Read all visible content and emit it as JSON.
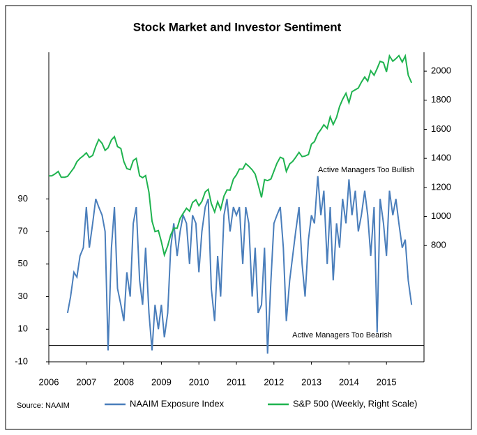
{
  "chart_data": {
    "type": "line",
    "title": "Stock Market and Investor Sentiment",
    "x": [
      2006,
      2006.08,
      2006.17,
      2006.25,
      2006.33,
      2006.42,
      2006.5,
      2006.58,
      2006.67,
      2006.75,
      2006.83,
      2006.92,
      2007,
      2007.08,
      2007.17,
      2007.25,
      2007.33,
      2007.42,
      2007.5,
      2007.58,
      2007.67,
      2007.75,
      2007.83,
      2007.92,
      2008,
      2008.08,
      2008.17,
      2008.25,
      2008.33,
      2008.42,
      2008.5,
      2008.58,
      2008.67,
      2008.75,
      2008.83,
      2008.92,
      2009,
      2009.08,
      2009.17,
      2009.25,
      2009.33,
      2009.42,
      2009.5,
      2009.58,
      2009.67,
      2009.75,
      2009.83,
      2009.92,
      2010,
      2010.08,
      2010.17,
      2010.25,
      2010.33,
      2010.42,
      2010.5,
      2010.58,
      2010.67,
      2010.75,
      2010.83,
      2010.92,
      2011,
      2011.08,
      2011.17,
      2011.25,
      2011.33,
      2011.42,
      2011.5,
      2011.58,
      2011.67,
      2011.75,
      2011.83,
      2011.92,
      2012,
      2012.08,
      2012.17,
      2012.25,
      2012.33,
      2012.42,
      2012.5,
      2012.58,
      2012.67,
      2012.75,
      2012.83,
      2012.92,
      2013,
      2013.08,
      2013.17,
      2013.25,
      2013.33,
      2013.42,
      2013.5,
      2013.58,
      2013.67,
      2013.75,
      2013.83,
      2013.92,
      2014,
      2014.08,
      2014.17,
      2014.25,
      2014.33,
      2014.42,
      2014.5,
      2014.58,
      2014.67,
      2014.75,
      2014.83,
      2014.92,
      2015,
      2015.08,
      2015.17,
      2015.25,
      2015.33,
      2015.42,
      2015.5,
      2015.58,
      2015.67
    ],
    "xlim": [
      2006,
      2016
    ],
    "xticks": [
      2006,
      2007,
      2008,
      2009,
      2010,
      2011,
      2012,
      2013,
      2014,
      2015
    ],
    "ylim": [
      -10,
      180
    ],
    "yticks": [
      -10,
      10,
      30,
      50,
      70,
      90
    ],
    "y2lim": [
      0,
      2130
    ],
    "y2ticks": [
      800,
      1000,
      1200,
      1400,
      1600,
      1800,
      2000
    ],
    "series": [
      {
        "name": "NAAIM Exposure Index",
        "color": "#4a7ebb",
        "values": [
          null,
          null,
          null,
          null,
          null,
          null,
          20,
          30,
          45,
          42,
          55,
          60,
          85,
          60,
          75,
          90,
          85,
          80,
          70,
          -3,
          60,
          85,
          35,
          25,
          15,
          45,
          30,
          75,
          85,
          40,
          25,
          60,
          20,
          -3,
          25,
          10,
          25,
          5,
          20,
          60,
          75,
          55,
          70,
          80,
          75,
          50,
          80,
          75,
          45,
          70,
          85,
          90,
          35,
          15,
          55,
          30,
          80,
          90,
          70,
          85,
          80,
          85,
          50,
          85,
          75,
          30,
          60,
          20,
          25,
          60,
          -5,
          40,
          75,
          80,
          85,
          60,
          15,
          40,
          55,
          70,
          85,
          50,
          30,
          65,
          80,
          75,
          104,
          80,
          95,
          50,
          85,
          40,
          75,
          60,
          90,
          75,
          102,
          80,
          95,
          70,
          80,
          95,
          80,
          55,
          85,
          8,
          90,
          75,
          55,
          95,
          80,
          90,
          75,
          60,
          65,
          40,
          25
        ]
      },
      {
        "name": "S&P 500 (Weekly, Right Scale)",
        "color": "#1fb34f",
        "axis": "y2",
        "values": [
          1280,
          1280,
          1294,
          1310,
          1270,
          1270,
          1276,
          1304,
          1335,
          1377,
          1400,
          1418,
          1438,
          1406,
          1420,
          1482,
          1530,
          1503,
          1455,
          1473,
          1527,
          1549,
          1481,
          1468,
          1378,
          1330,
          1322,
          1385,
          1400,
          1280,
          1267,
          1282,
          1166,
          968,
          896,
          903,
          826,
          735,
          798,
          873,
          919,
          919,
          987,
          1021,
          1057,
          1036,
          1096,
          1115,
          1074,
          1104,
          1169,
          1187,
          1089,
          1031,
          1102,
          1049,
          1141,
          1183,
          1181,
          1258,
          1286,
          1327,
          1326,
          1364,
          1345,
          1321,
          1292,
          1219,
          1131,
          1253,
          1247,
          1258,
          1312,
          1366,
          1408,
          1398,
          1310,
          1362,
          1379,
          1407,
          1441,
          1412,
          1416,
          1426,
          1498,
          1515,
          1569,
          1598,
          1631,
          1606,
          1686,
          1633,
          1682,
          1757,
          1806,
          1848,
          1783,
          1859,
          1872,
          1884,
          1924,
          1960,
          1931,
          2003,
          1972,
          2018,
          2068,
          2059,
          1995,
          2105,
          2068,
          2086,
          2107,
          2063,
          2104,
          1972,
          1920
        ]
      }
    ],
    "annotations": [
      "Active Managers Too Bullish",
      "Active Managers Too Bearish"
    ],
    "source": "Source: NAAIM"
  }
}
